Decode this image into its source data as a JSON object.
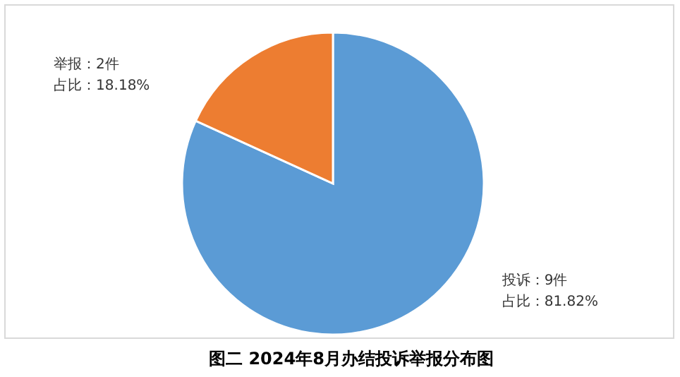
{
  "chart_data": {
    "type": "pie",
    "title": "图二  2024年8月办结投诉举报分布图",
    "categories": [
      "投诉：9件",
      "举报：2件"
    ],
    "values": [
      81.82,
      18.18
    ],
    "colors": [
      "#5b9bd5",
      "#ed7d31"
    ],
    "value_labels": [
      "占比：81.82%",
      "占比：18.18%"
    ]
  }
}
